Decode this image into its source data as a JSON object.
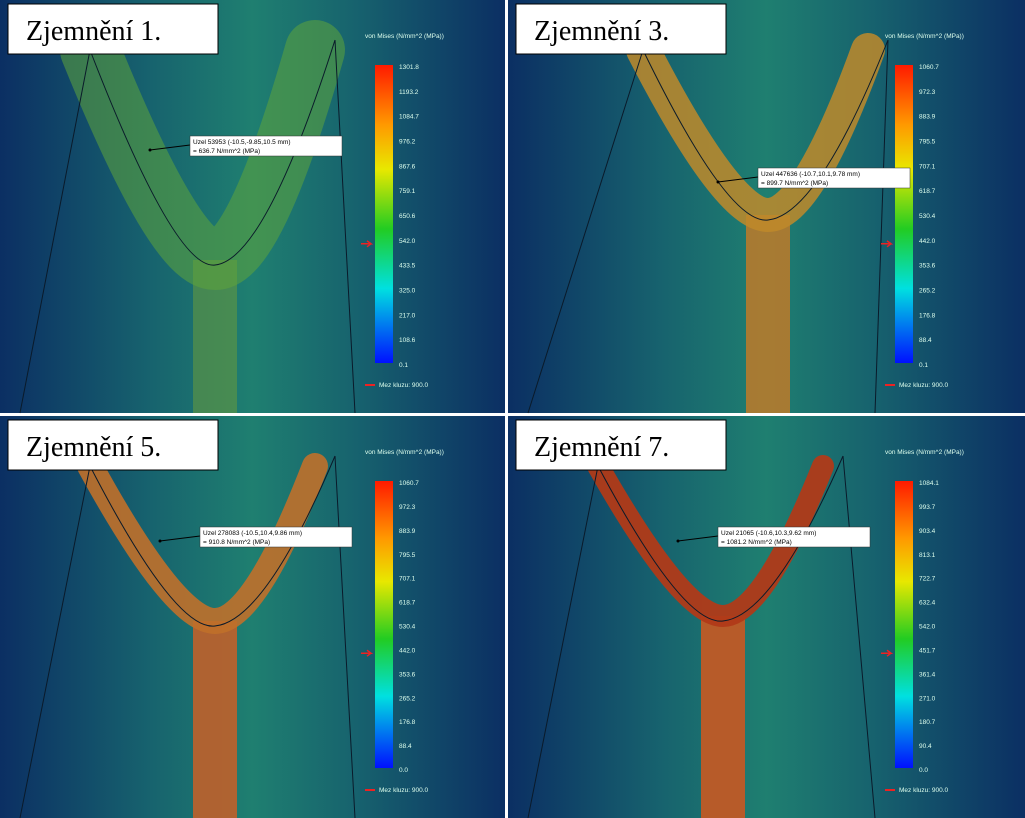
{
  "panels": [
    {
      "label": "Zjemnění 1.",
      "legend_title": "von Mises (N/mm^2 (MPa))",
      "ticks": [
        "1301.8",
        "1193.2",
        "1084.7",
        "976.2",
        "867.6",
        "759.1",
        "650.6",
        "542.0",
        "433.5",
        "325.0",
        "217.0",
        "108.6",
        "0.1"
      ],
      "probe": [
        "Uzel 53953 (-10.5,-9.85,10.5 mm)",
        "= 636.7   N/mm^2 (MPa)"
      ],
      "yield_label": "Mez kluzu: 900.0"
    },
    {
      "label": "Zjemnění 3.",
      "legend_title": "von Mises (N/mm^2 (MPa))",
      "ticks": [
        "1060.7",
        "972.3",
        "883.9",
        "795.5",
        "707.1",
        "618.7",
        "530.4",
        "442.0",
        "353.6",
        "265.2",
        "176.8",
        "88.4",
        "0.1"
      ],
      "probe": [
        "Uzel 447636 (-10.7,10.1,9.78 mm)",
        "= 899.7   N/mm^2 (MPa)"
      ],
      "yield_label": "Mez kluzu: 900.0"
    },
    {
      "label": "Zjemnění 5.",
      "legend_title": "von Mises (N/mm^2 (MPa))",
      "ticks": [
        "1060.7",
        "972.3",
        "883.9",
        "795.5",
        "707.1",
        "618.7",
        "530.4",
        "442.0",
        "353.6",
        "265.2",
        "176.8",
        "88.4",
        "0.0"
      ],
      "probe": [
        "Uzel 278083 (-10.5,10.4,9.86 mm)",
        "= 910.8   N/mm^2 (MPa)"
      ],
      "yield_label": "Mez kluzu: 900.0"
    },
    {
      "label": "Zjemnění 7.",
      "legend_title": "von Mises (N/mm^2 (MPa))",
      "ticks": [
        "1084.1",
        "993.7",
        "903.4",
        "813.1",
        "722.7",
        "632.4",
        "542.0",
        "451.7",
        "361.4",
        "271.0",
        "180.7",
        "90.4",
        "0.0"
      ],
      "probe": [
        "Uzel 21065 (-10.6,10.3,9.62 mm)",
        "= 1081.2   N/mm^2 (MPa)"
      ],
      "yield_label": "Mez kluzu: 900.0"
    }
  ]
}
